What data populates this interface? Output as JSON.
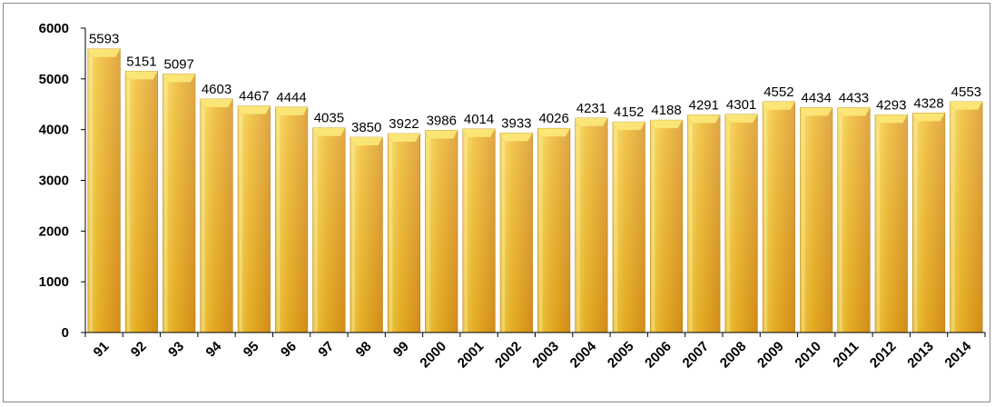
{
  "chart_data": {
    "type": "bar",
    "categories": [
      "91",
      "92",
      "93",
      "94",
      "95",
      "96",
      "97",
      "98",
      "99",
      "2000",
      "2001",
      "2002",
      "2003",
      "2004",
      "2005",
      "2006",
      "2007",
      "2008",
      "2009",
      "2010",
      "2011",
      "2012",
      "2013",
      "2014"
    ],
    "values": [
      5593,
      5151,
      5097,
      4603,
      4467,
      4444,
      4035,
      3850,
      3922,
      3986,
      4014,
      3933,
      4026,
      4231,
      4152,
      4188,
      4291,
      4301,
      4552,
      4434,
      4433,
      4293,
      4328,
      4553
    ],
    "title": "",
    "xlabel": "",
    "ylabel": "",
    "ylim": [
      0,
      6000
    ],
    "yticks": [
      0,
      1000,
      2000,
      3000,
      4000,
      5000,
      6000
    ],
    "grid": false,
    "legend": "none",
    "colors": {
      "bar_light": "#f7dc5a",
      "bar_mid": "#f0bb2a",
      "bar_dark": "#d9931e",
      "bar_top": "#fbe97a",
      "axis": "#000000"
    }
  }
}
